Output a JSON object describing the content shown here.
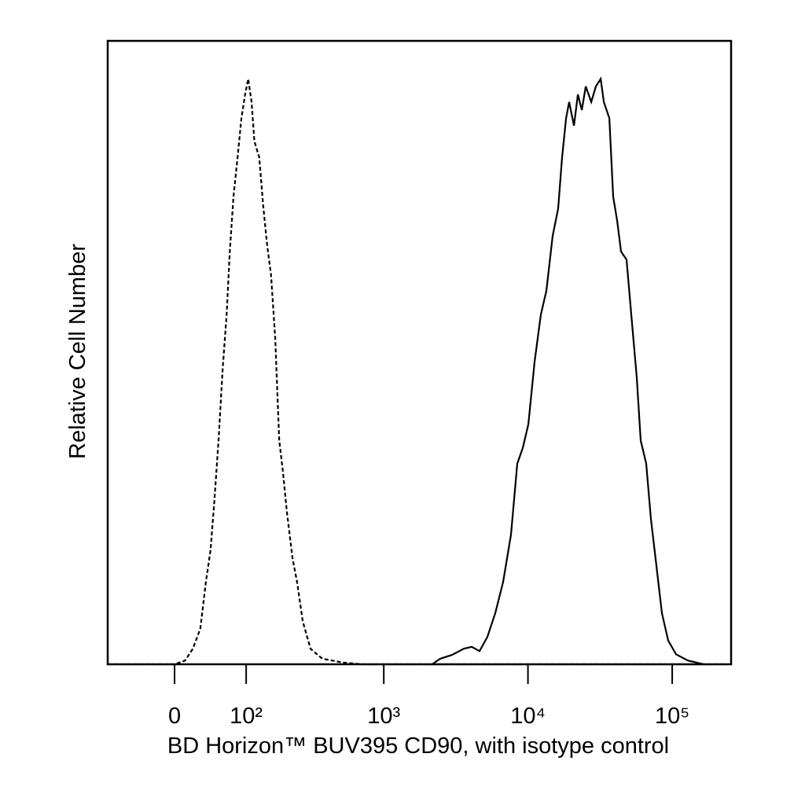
{
  "chart_data": {
    "type": "line",
    "x_label": "BD Horizon™ BUV395 CD90, with isotype control",
    "y_label": "Relative Cell Number",
    "xscale": "biexponential",
    "xlim": [
      -91,
      256000
    ],
    "ylim": [
      0,
      100
    ],
    "xticks": [
      0,
      {
        "value": 100,
        "label": "10²"
      },
      {
        "value": 1000,
        "label": "10³"
      },
      {
        "value": 10000,
        "label": "10⁴"
      },
      {
        "value": 100000,
        "label": "10⁵"
      }
    ],
    "series": [
      {
        "color": "#000000",
        "line_style": "dashed",
        "x": [
          -91,
          0,
          12,
          21,
          30,
          37,
          43,
          48,
          54,
          60,
          66,
          71,
          77,
          84,
          91,
          98,
          104,
          111,
          117,
          128,
          137,
          147,
          158,
          170,
          182,
          194,
          207,
          228,
          246,
          270,
          307,
          372,
          511,
          703,
          226000
        ],
        "values": [
          0,
          0,
          0.6,
          2.5,
          5.7,
          13.2,
          18.3,
          25.9,
          35.9,
          47.3,
          56.1,
          66.2,
          75.0,
          81.3,
          87.6,
          91.4,
          93.9,
          90.2,
          83.9,
          81.3,
          73.8,
          67.5,
          62.4,
          52.3,
          35.9,
          30.9,
          24.6,
          17.0,
          13.2,
          6.9,
          2.5,
          0.9,
          0.3,
          0,
          0
        ]
      },
      {
        "color": "#000000",
        "line_style": "solid",
        "x": [
          2170,
          2465,
          2975,
          3590,
          4075,
          4615,
          5235,
          5935,
          6730,
          7630,
          8430,
          9210,
          10060,
          11120,
          12280,
          13420,
          14840,
          16200,
          17250,
          18380,
          19310,
          20840,
          22190,
          23610,
          25140,
          27450,
          29590,
          31920,
          33550,
          36640,
          38980,
          41500,
          44200,
          48250,
          52040,
          56800,
          60460,
          65990,
          71180,
          77720,
          84850,
          93800,
          106400,
          128400,
          165000
        ],
        "values": [
          0,
          0.9,
          1.5,
          2.5,
          2.8,
          2.1,
          4.4,
          8.2,
          13.2,
          20.8,
          32.2,
          34.7,
          38.5,
          48.5,
          56.1,
          59.9,
          68.7,
          73.1,
          81.3,
          87.6,
          90.2,
          86.4,
          91.4,
          88.9,
          92.7,
          90.2,
          92.7,
          93.9,
          90.2,
          87.6,
          75.0,
          71.2,
          66.2,
          64.9,
          56.1,
          46.0,
          35.9,
          32.2,
          23.3,
          15.8,
          8.2,
          3.8,
          1.6,
          0.6,
          0
        ]
      }
    ]
  }
}
